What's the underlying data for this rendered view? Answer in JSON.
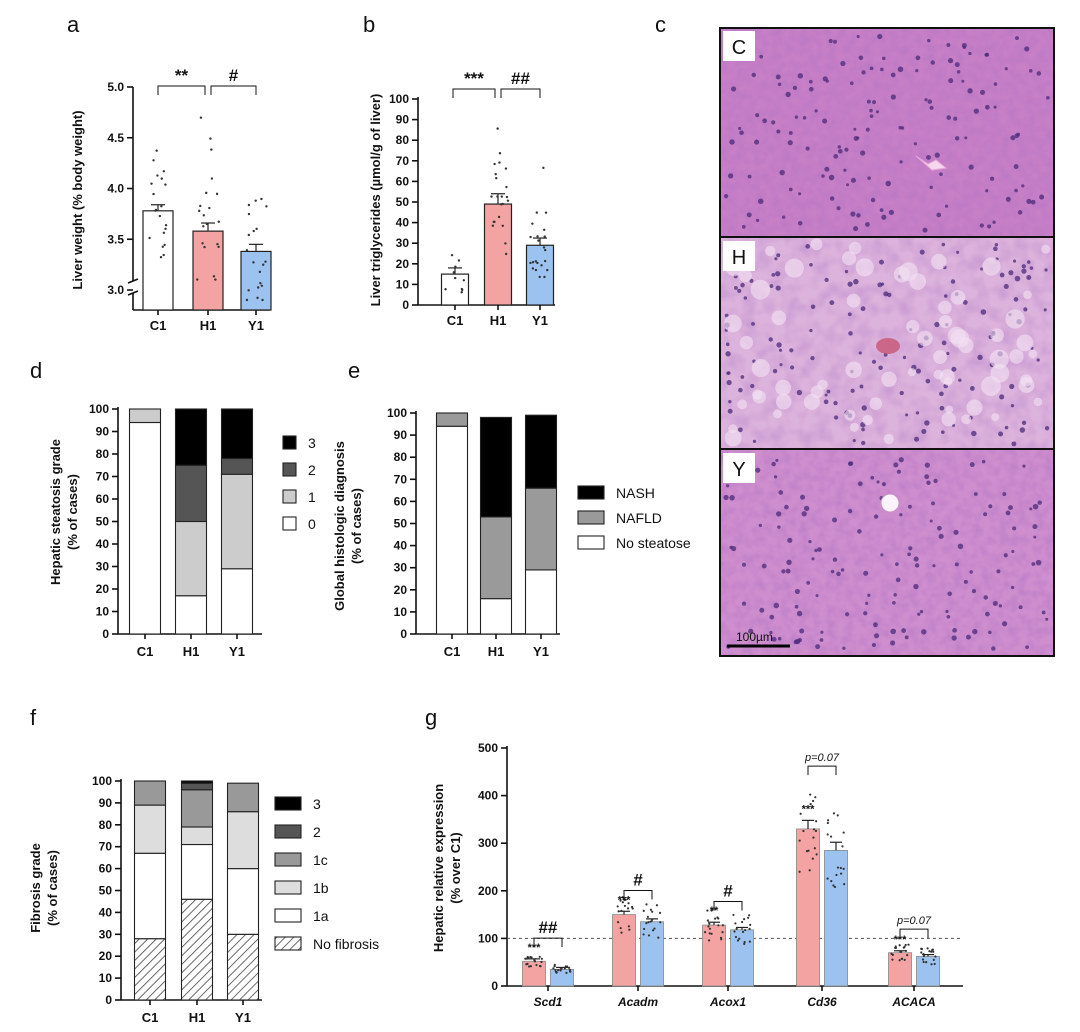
{
  "colors": {
    "control": "#ffffff",
    "hfd": "#f4a3a3",
    "yeast": "#9cc3f0",
    "nash": "#000000",
    "nafld": "#9a9a9a",
    "g2": "#555555",
    "g1": "#cccccc",
    "g1c": "#999999",
    "g1b": "#dddddd",
    "none": "#ffffff"
  },
  "chart_data": [
    {
      "id": "a",
      "type": "bar",
      "panel_label": "a",
      "ylabel": "Liver weight (% body weight)",
      "ylim": [
        2.9,
        5.0
      ],
      "axis_break": [
        3.0,
        3.05
      ],
      "ticks": [
        "3.0",
        "3.5",
        "4.0",
        "4.5",
        "5.0"
      ],
      "categories": [
        "C1",
        "H1",
        "Y1"
      ],
      "values": [
        3.78,
        3.58,
        3.38
      ],
      "errors": [
        0.06,
        0.08,
        0.07
      ],
      "significance": [
        {
          "from": 0,
          "to": 1,
          "label": "**"
        },
        {
          "from": 1,
          "to": 2,
          "label": "#"
        }
      ]
    },
    {
      "id": "b",
      "type": "bar",
      "panel_label": "b",
      "ylabel": "Liver triglycerides (µmol/g of liver)",
      "ylim": [
        0,
        100
      ],
      "ticks": [
        "0",
        "10",
        "20",
        "30",
        "40",
        "50",
        "60",
        "70",
        "80",
        "90",
        "100"
      ],
      "categories": [
        "C1",
        "H1",
        "Y1"
      ],
      "values": [
        15,
        49,
        29
      ],
      "errors": [
        3,
        5,
        3.5
      ],
      "significance": [
        {
          "from": 0,
          "to": 1,
          "label": "***"
        },
        {
          "from": 1,
          "to": 2,
          "label": "##"
        }
      ]
    },
    {
      "id": "c",
      "type": "image_panels",
      "panel_label": "c",
      "images": [
        {
          "label": "C"
        },
        {
          "label": "H"
        },
        {
          "label": "Y"
        }
      ],
      "scale_bar": "100µm"
    },
    {
      "id": "d",
      "type": "stacked_bar",
      "panel_label": "d",
      "ylabel": "Hepatic steatosis grade",
      "ylabel2": "(% of cases)",
      "ylim": [
        0,
        100
      ],
      "ticks": [
        "0",
        "10",
        "20",
        "30",
        "40",
        "50",
        "60",
        "70",
        "80",
        "90",
        "100"
      ],
      "categories": [
        "C1",
        "H1",
        "Y1"
      ],
      "series": [
        {
          "name": "0",
          "values": [
            94,
            17,
            29
          ]
        },
        {
          "name": "1",
          "values": [
            6,
            33,
            42
          ]
        },
        {
          "name": "2",
          "values": [
            0,
            25,
            7
          ]
        },
        {
          "name": "3",
          "values": [
            0,
            25,
            22
          ]
        }
      ]
    },
    {
      "id": "e",
      "type": "stacked_bar",
      "panel_label": "e",
      "ylabel": "Global histologic diagnosis",
      "ylabel2": "(% of cases)",
      "ylim": [
        0,
        100
      ],
      "ticks": [
        "0",
        "10",
        "20",
        "30",
        "40",
        "50",
        "60",
        "70",
        "80",
        "90",
        "100"
      ],
      "categories": [
        "C1",
        "H1",
        "Y1"
      ],
      "series": [
        {
          "name": "No steatose",
          "values": [
            94,
            16,
            29
          ]
        },
        {
          "name": "NAFLD",
          "values": [
            6,
            37,
            37
          ]
        },
        {
          "name": "NASH",
          "values": [
            0,
            45,
            33
          ]
        }
      ]
    },
    {
      "id": "f",
      "type": "stacked_bar",
      "panel_label": "f",
      "ylabel": "Fibrosis grade",
      "ylabel2": "(% of cases)",
      "ylim": [
        0,
        100
      ],
      "ticks": [
        "0",
        "10",
        "20",
        "30",
        "40",
        "50",
        "60",
        "70",
        "80",
        "90",
        "100"
      ],
      "categories": [
        "C1",
        "H1",
        "Y1"
      ],
      "series": [
        {
          "name": "No fibrosis",
          "values": [
            28,
            46,
            30
          ]
        },
        {
          "name": "1a",
          "values": [
            39,
            25,
            30
          ]
        },
        {
          "name": "1b",
          "values": [
            22,
            8,
            26
          ]
        },
        {
          "name": "1c",
          "values": [
            11,
            17,
            13
          ]
        },
        {
          "name": "2",
          "values": [
            0,
            3,
            0
          ]
        },
        {
          "name": "3",
          "values": [
            0,
            1,
            0
          ]
        }
      ]
    },
    {
      "id": "g",
      "type": "grouped_bar",
      "panel_label": "g",
      "ylabel": "Hepatic relative expression",
      "ylabel2": "(% over C1)",
      "ylim": [
        0,
        500
      ],
      "reference_line": 100,
      "ticks": [
        "0",
        "100",
        "200",
        "300",
        "400",
        "500"
      ],
      "categories": [
        "Scd1",
        "Acadm",
        "Acox1",
        "Cd36",
        "ACACA"
      ],
      "series": [
        {
          "name": "H1",
          "values": [
            52,
            150,
            128,
            330,
            70
          ],
          "errors": [
            5,
            7,
            6,
            18,
            4
          ]
        },
        {
          "name": "Y1",
          "values": [
            35,
            135,
            118,
            285,
            62
          ],
          "errors": [
            4,
            6,
            5,
            17,
            4
          ]
        }
      ],
      "stars": [
        "***",
        "***",
        "**",
        "***",
        "***"
      ],
      "comparisons": [
        "##",
        "#",
        "#",
        "p=0.07",
        "p=0.07"
      ]
    }
  ]
}
